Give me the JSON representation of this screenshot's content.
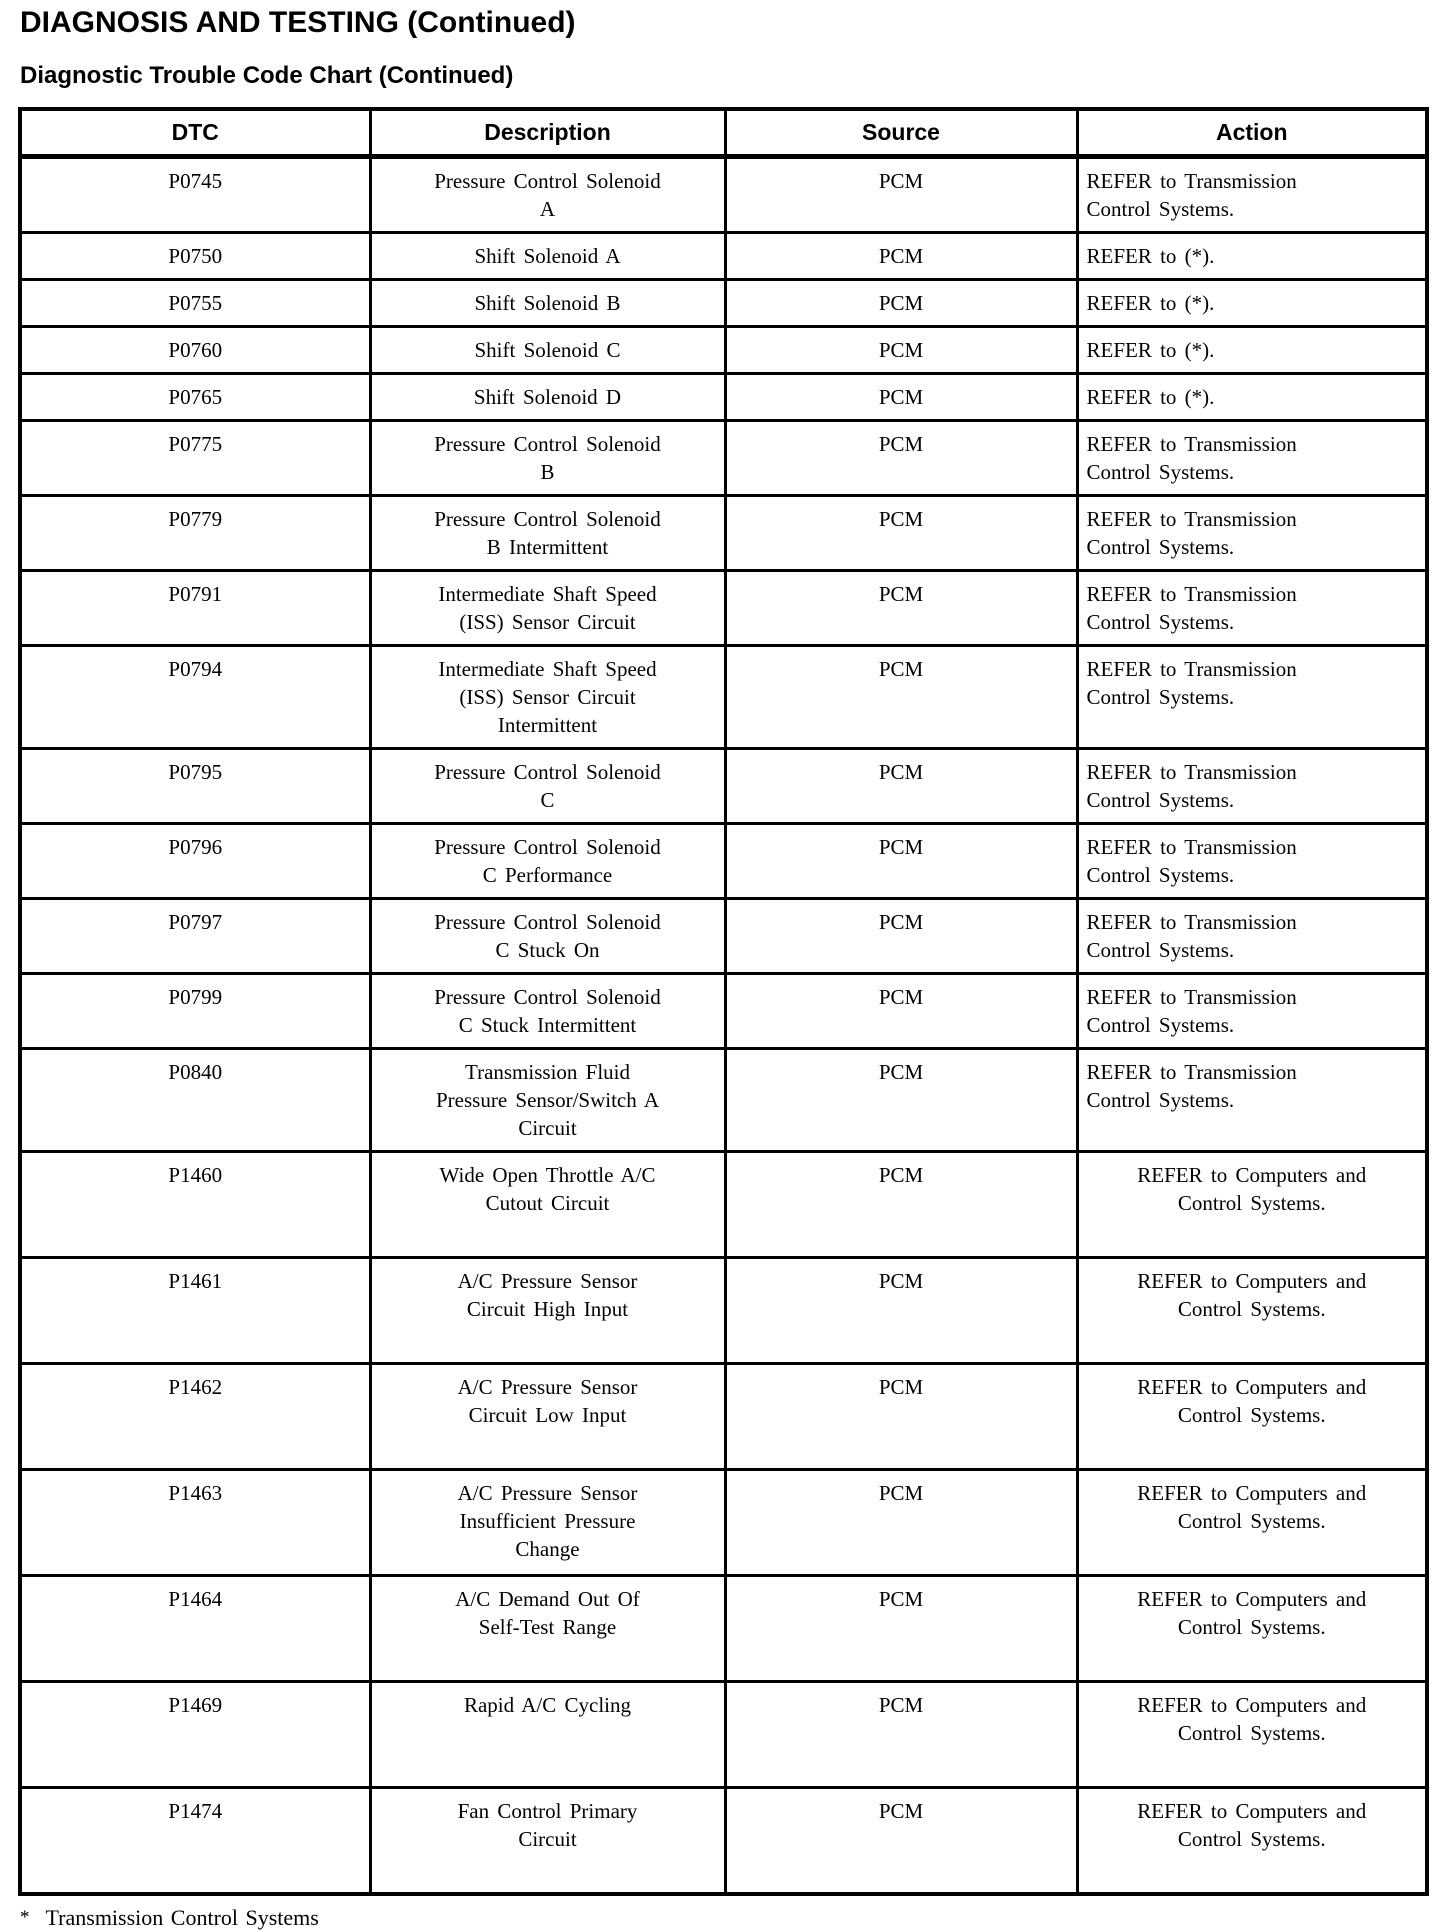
{
  "page": {
    "title": "DIAGNOSIS AND TESTING (Continued)",
    "subtitle": "Diagnostic Trouble Code Chart (Continued)",
    "text_color": "#000000",
    "background_color": "#ffffff"
  },
  "footnote": {
    "marker": "*",
    "text": "Transmission Control Systems"
  },
  "table": {
    "columns": [
      "DTC",
      "Description",
      "Source",
      "Action"
    ],
    "rows": [
      {
        "dtc": "P0745",
        "description": "Pressure Control Solenoid\nA",
        "source": "PCM",
        "action": "REFER to Transmission\nControl Systems."
      },
      {
        "dtc": "P0750",
        "description": "Shift Solenoid A",
        "source": "PCM",
        "action": "REFER to (*)."
      },
      {
        "dtc": "P0755",
        "description": "Shift Solenoid B",
        "source": "PCM",
        "action": "REFER to (*)."
      },
      {
        "dtc": "P0760",
        "description": "Shift Solenoid C",
        "source": "PCM",
        "action": "REFER to (*)."
      },
      {
        "dtc": "P0765",
        "description": "Shift Solenoid D",
        "source": "PCM",
        "action": "REFER to (*)."
      },
      {
        "dtc": "P0775",
        "description": "Pressure Control Solenoid\nB",
        "source": "PCM",
        "action": "REFER to Transmission\nControl Systems."
      },
      {
        "dtc": "P0779",
        "description": "Pressure Control Solenoid\nB Intermittent",
        "source": "PCM",
        "action": "REFER to Transmission\nControl Systems."
      },
      {
        "dtc": "P0791",
        "description": "Intermediate Shaft Speed\n(ISS) Sensor Circuit",
        "source": "PCM",
        "action": "REFER to Transmission\nControl Systems."
      },
      {
        "dtc": "P0794",
        "description": "Intermediate Shaft Speed\n(ISS) Sensor Circuit\nIntermittent",
        "source": "PCM",
        "action": "REFER to Transmission\nControl Systems."
      },
      {
        "dtc": "P0795",
        "description": "Pressure Control Solenoid\nC",
        "source": "PCM",
        "action": "REFER to Transmission\nControl Systems."
      },
      {
        "dtc": "P0796",
        "description": "Pressure Control Solenoid\nC Performance",
        "source": "PCM",
        "action": "REFER to Transmission\nControl Systems."
      },
      {
        "dtc": "P0797",
        "description": "Pressure Control Solenoid\nC Stuck On",
        "source": "PCM",
        "action": "REFER to Transmission\nControl Systems."
      },
      {
        "dtc": "P0799",
        "description": "Pressure Control Solenoid\nC Stuck Intermittent",
        "source": "PCM",
        "action": "REFER to Transmission\nControl Systems."
      },
      {
        "dtc": "P0840",
        "description": "Transmission Fluid\nPressure Sensor/Switch A\nCircuit",
        "source": "PCM",
        "action": "REFER to Transmission\nControl Systems."
      },
      {
        "dtc": "P1460",
        "description": "Wide Open Throttle A/C\nCutout Circuit",
        "source": "PCM",
        "action": "REFER to Computers and\nControl Systems."
      },
      {
        "dtc": "P1461",
        "description": "A/C Pressure Sensor\nCircuit High Input",
        "source": "PCM",
        "action": "REFER to Computers and\nControl Systems."
      },
      {
        "dtc": "P1462",
        "description": "A/C Pressure Sensor\nCircuit Low Input",
        "source": "PCM",
        "action": "REFER to Computers and\nControl Systems."
      },
      {
        "dtc": "P1463",
        "description": "A/C Pressure Sensor\nInsufficient Pressure\nChange",
        "source": "PCM",
        "action": "REFER to Computers and\nControl Systems."
      },
      {
        "dtc": "P1464",
        "description": "A/C Demand Out Of\nSelf-Test Range",
        "source": "PCM",
        "action": "REFER to Computers and\nControl Systems."
      },
      {
        "dtc": "P1469",
        "description": "Rapid A/C Cycling",
        "source": "PCM",
        "action": "REFER to Computers and\nControl Systems."
      },
      {
        "dtc": "P1474",
        "description": "Fan Control Primary\nCircuit",
        "source": "PCM",
        "action": "REFER to Computers and\nControl Systems."
      }
    ]
  }
}
